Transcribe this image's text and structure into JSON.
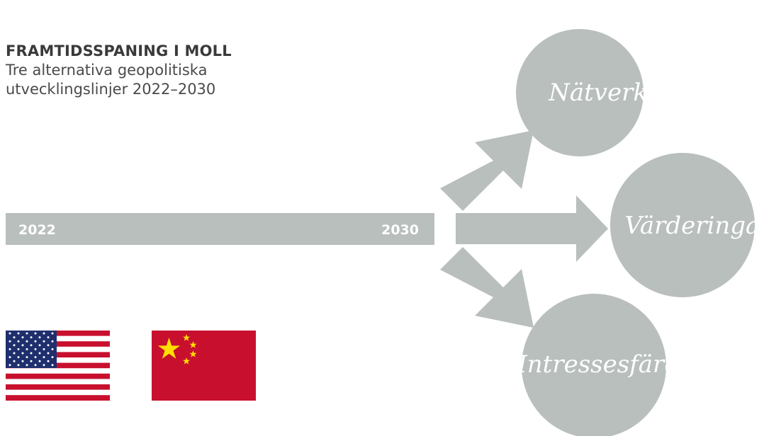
{
  "header": {
    "title": "FRAMTIDSSPANING I MOLL",
    "subtitle_lines": [
      "Tre alternativa geopolitiska",
      "utvecklingslinjer 2022–2030"
    ]
  },
  "timeline": {
    "start_year": "2022",
    "end_year": "2030"
  },
  "scenarios": [
    {
      "label": "Nätverk"
    },
    {
      "label": "Värderingar"
    },
    {
      "label": "Intressesfärer"
    }
  ],
  "flags": [
    {
      "name": "usa-flag"
    },
    {
      "name": "china-flag"
    }
  ],
  "colors": {
    "shape_gray": "#b9bfbc",
    "title_text": "#3a3a3a",
    "us_red": "#c8102e",
    "us_blue": "#1f2f6e",
    "china_red": "#c8102e",
    "china_yellow": "#ffde00"
  }
}
